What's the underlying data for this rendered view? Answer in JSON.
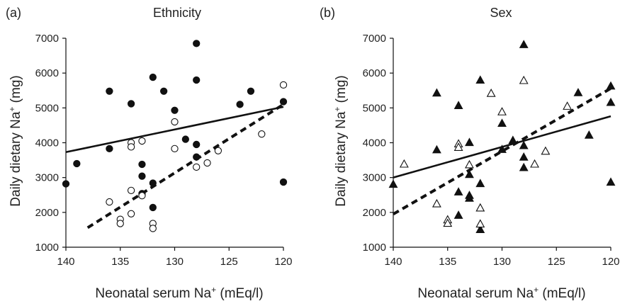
{
  "figure": {
    "background": "#ffffff"
  },
  "chart_data": [
    {
      "type": "scatter",
      "panel_label": "(a)",
      "title": "Ethnicity",
      "xlabel": "Neonatal serum Na",
      "xlabel_superscript": "+",
      "xlabel_unit": " (mEq/l)",
      "ylabel": "Daily dietary Na",
      "ylabel_superscript": "+",
      "ylabel_unit": " (mg)",
      "xlim": [
        140,
        120
      ],
      "ylim": [
        1000,
        7000
      ],
      "x_ticks": [
        140,
        135,
        130,
        125,
        120
      ],
      "y_ticks": [
        1000,
        2000,
        3000,
        4000,
        5000,
        6000,
        7000
      ],
      "grid": false,
      "legend": "none",
      "series": [
        {
          "marker": "filled-circle",
          "color": "#111111",
          "points": [
            {
              "x": 140,
              "y": 2820
            },
            {
              "x": 139,
              "y": 3400
            },
            {
              "x": 136,
              "y": 3830
            },
            {
              "x": 136,
              "y": 5480
            },
            {
              "x": 134,
              "y": 5120
            },
            {
              "x": 133,
              "y": 3380
            },
            {
              "x": 133,
              "y": 3040
            },
            {
              "x": 133,
              "y": 2540
            },
            {
              "x": 132,
              "y": 5880
            },
            {
              "x": 132,
              "y": 2840
            },
            {
              "x": 132,
              "y": 2140
            },
            {
              "x": 131,
              "y": 5480
            },
            {
              "x": 130,
              "y": 4930
            },
            {
              "x": 129,
              "y": 4100
            },
            {
              "x": 128,
              "y": 6850
            },
            {
              "x": 128,
              "y": 5800
            },
            {
              "x": 128,
              "y": 3950
            },
            {
              "x": 128,
              "y": 3590
            },
            {
              "x": 124,
              "y": 5100
            },
            {
              "x": 123,
              "y": 5480
            },
            {
              "x": 120,
              "y": 5180
            },
            {
              "x": 120,
              "y": 2870
            }
          ],
          "trend": {
            "style": "solid",
            "from": {
              "x": 140,
              "y": 3730
            },
            "to": {
              "x": 120,
              "y": 5030
            }
          }
        },
        {
          "marker": "open-circle",
          "color": "#111111",
          "points": [
            {
              "x": 136,
              "y": 2300
            },
            {
              "x": 135,
              "y": 1800
            },
            {
              "x": 135,
              "y": 1680
            },
            {
              "x": 134,
              "y": 4000
            },
            {
              "x": 134,
              "y": 3880
            },
            {
              "x": 134,
              "y": 2630
            },
            {
              "x": 134,
              "y": 1960
            },
            {
              "x": 133,
              "y": 4050
            },
            {
              "x": 133,
              "y": 2480
            },
            {
              "x": 132,
              "y": 1680
            },
            {
              "x": 132,
              "y": 1540
            },
            {
              "x": 130,
              "y": 4600
            },
            {
              "x": 130,
              "y": 3830
            },
            {
              "x": 128,
              "y": 3300
            },
            {
              "x": 127,
              "y": 3420
            },
            {
              "x": 126,
              "y": 3770
            },
            {
              "x": 122,
              "y": 4250
            },
            {
              "x": 120,
              "y": 5660
            }
          ],
          "trend": {
            "style": "dashed",
            "from": {
              "x": 138,
              "y": 1560
            },
            "to": {
              "x": 120,
              "y": 5100
            }
          }
        }
      ]
    },
    {
      "type": "scatter",
      "panel_label": "(b)",
      "title": "Sex",
      "xlabel": "Neonatal serum Na",
      "xlabel_superscript": "+",
      "xlabel_unit": " (mEq/l)",
      "ylabel": "Daily dietary Na",
      "ylabel_superscript": "+",
      "ylabel_unit": " (mg)",
      "xlim": [
        140,
        120
      ],
      "ylim": [
        1000,
        7000
      ],
      "x_ticks": [
        140,
        135,
        130,
        125,
        120
      ],
      "y_ticks": [
        1000,
        2000,
        3000,
        4000,
        5000,
        6000,
        7000
      ],
      "grid": false,
      "legend": "none",
      "series": [
        {
          "marker": "filled-triangle",
          "color": "#111111",
          "points": [
            {
              "x": 140,
              "y": 2820
            },
            {
              "x": 136,
              "y": 5440
            },
            {
              "x": 136,
              "y": 3810
            },
            {
              "x": 134,
              "y": 5080
            },
            {
              "x": 134,
              "y": 2600
            },
            {
              "x": 134,
              "y": 1930
            },
            {
              "x": 133,
              "y": 4020
            },
            {
              "x": 133,
              "y": 3100
            },
            {
              "x": 133,
              "y": 2500
            },
            {
              "x": 133,
              "y": 2420
            },
            {
              "x": 132,
              "y": 5810
            },
            {
              "x": 132,
              "y": 2840
            },
            {
              "x": 132,
              "y": 1520
            },
            {
              "x": 130,
              "y": 4570
            },
            {
              "x": 130,
              "y": 3820
            },
            {
              "x": 129,
              "y": 4080
            },
            {
              "x": 128,
              "y": 6830
            },
            {
              "x": 128,
              "y": 3930
            },
            {
              "x": 128,
              "y": 3600
            },
            {
              "x": 128,
              "y": 3300
            },
            {
              "x": 123,
              "y": 5450
            },
            {
              "x": 122,
              "y": 4230
            },
            {
              "x": 120,
              "y": 5640
            },
            {
              "x": 120,
              "y": 5170
            },
            {
              "x": 120,
              "y": 2880
            }
          ],
          "trend": {
            "style": "solid",
            "from": {
              "x": 140,
              "y": 3000
            },
            "to": {
              "x": 120,
              "y": 4760
            }
          }
        },
        {
          "marker": "open-triangle",
          "color": "#111111",
          "points": [
            {
              "x": 139,
              "y": 3400
            },
            {
              "x": 136,
              "y": 2260
            },
            {
              "x": 135,
              "y": 1800
            },
            {
              "x": 135,
              "y": 1700
            },
            {
              "x": 134,
              "y": 3980
            },
            {
              "x": 134,
              "y": 3880
            },
            {
              "x": 133,
              "y": 3380
            },
            {
              "x": 132,
              "y": 2140
            },
            {
              "x": 132,
              "y": 1680
            },
            {
              "x": 131,
              "y": 5430
            },
            {
              "x": 130,
              "y": 4900
            },
            {
              "x": 128,
              "y": 5800
            },
            {
              "x": 127,
              "y": 3400
            },
            {
              "x": 126,
              "y": 3770
            },
            {
              "x": 124,
              "y": 5060
            }
          ],
          "trend": {
            "style": "dashed",
            "from": {
              "x": 140,
              "y": 1950
            },
            "to": {
              "x": 120,
              "y": 5560
            }
          }
        }
      ]
    }
  ]
}
